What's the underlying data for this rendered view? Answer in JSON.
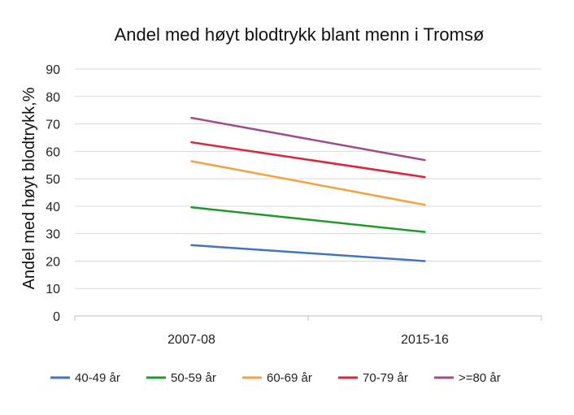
{
  "chart_data": {
    "type": "line",
    "title": "Andel med høyt blodtrykk blant menn i Tromsø",
    "xlabel": "",
    "ylabel": "Andel med høyt blodtrykk,%",
    "categories": [
      "2007-08",
      "2015-16"
    ],
    "ylim": [
      0,
      90
    ],
    "yticks": [
      0,
      10,
      20,
      30,
      40,
      50,
      60,
      70,
      80,
      90
    ],
    "grid": true,
    "legend_position": "bottom",
    "series": [
      {
        "name": "40-49 år",
        "values": [
          25.8,
          20.0
        ],
        "color": "#4472C4"
      },
      {
        "name": "50-59 år",
        "values": [
          39.6,
          30.6
        ],
        "color": "#1E9A2C"
      },
      {
        "name": "60-69 år",
        "values": [
          56.4,
          40.5
        ],
        "color": "#F2A33A"
      },
      {
        "name": "70-79 år",
        "values": [
          63.3,
          50.6
        ],
        "color": "#E02138"
      },
      {
        "name": ">=80 år",
        "values": [
          72.2,
          56.8
        ],
        "color": "#A04C88"
      }
    ]
  }
}
